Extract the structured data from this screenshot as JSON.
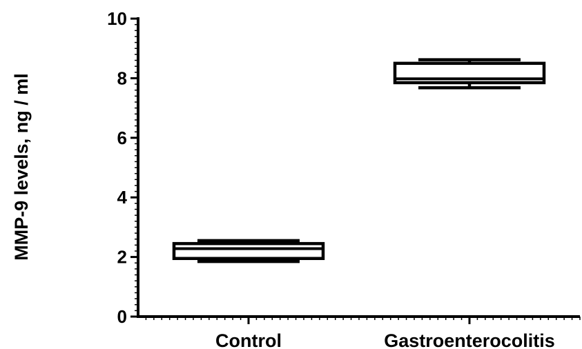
{
  "chart_data": {
    "type": "box",
    "ylabel": "MMP-9 levels, ng / ml",
    "xlabel": "",
    "title": "",
    "ylim": [
      0,
      10
    ],
    "y_major_ticks": [
      0,
      2,
      4,
      6,
      8,
      10
    ],
    "y_tick_labels": [
      "0",
      "2",
      "4",
      "6",
      "8",
      "10"
    ],
    "y_minor_step": 0.2,
    "x_minor_ticks_per_category": 28,
    "grid": false,
    "categories": [
      "Control",
      "Gastroenterocolitis"
    ],
    "boxes": [
      {
        "category": "Control",
        "min": 1.85,
        "q1": 1.95,
        "median": 2.28,
        "q3": 2.45,
        "max": 2.55
      },
      {
        "category": "Gastroenterocolitis",
        "min": 7.68,
        "q1": 7.85,
        "median": 7.98,
        "q3": 8.5,
        "max": 8.62
      }
    ]
  }
}
